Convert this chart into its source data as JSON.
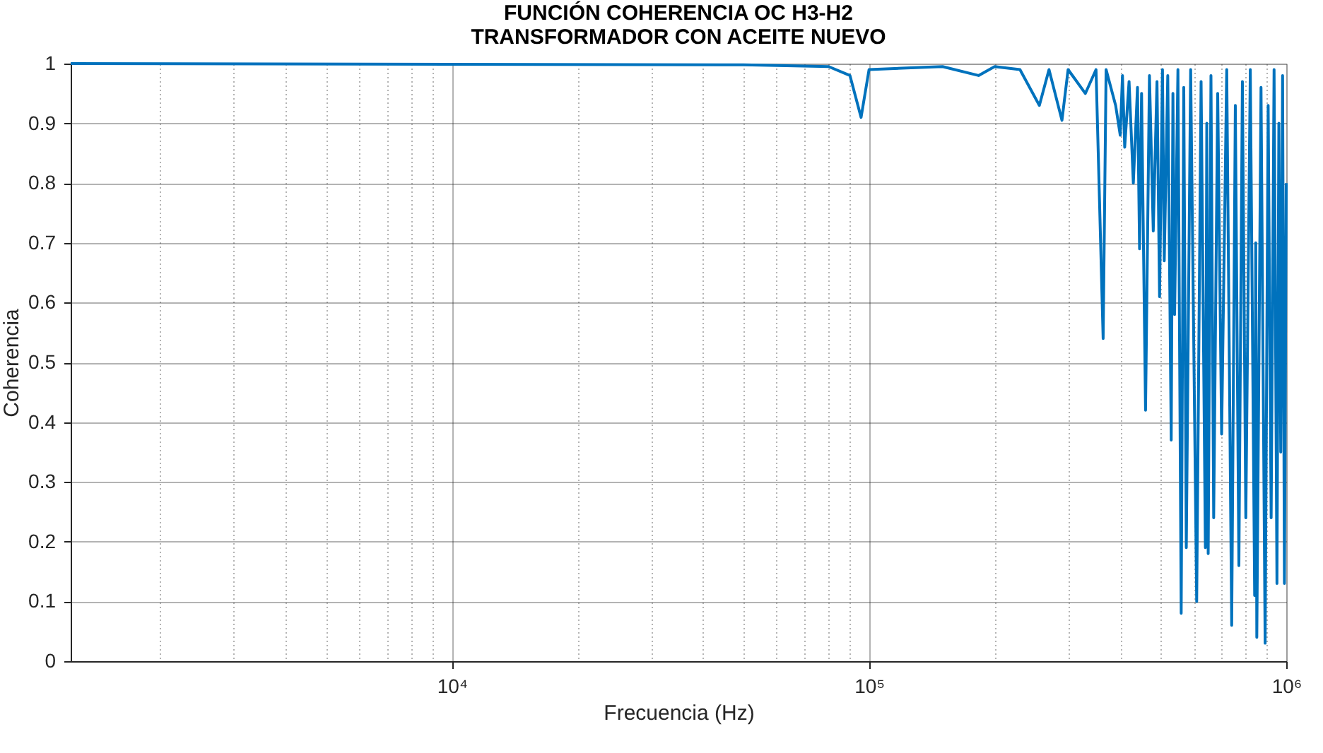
{
  "chart_data": {
    "type": "line",
    "title": [
      "FUNCIÓN COHERENCIA OC H3-H2",
      "TRANSFORMADOR CON ACEITE NUEVO"
    ],
    "xlabel": "Frecuencia (Hz)",
    "ylabel": "Coherencia",
    "log": "x",
    "grid": true,
    "marker": "none",
    "line_style": "solid",
    "xlim": [
      1220,
      1000000
    ],
    "xticks": [
      {
        "value": 2000,
        "label": null
      },
      {
        "value": 3000,
        "label": null
      },
      {
        "value": 4000,
        "label": null
      },
      {
        "value": 5000,
        "label": null
      },
      {
        "value": 6000,
        "label": null
      },
      {
        "value": 7000,
        "label": null
      },
      {
        "value": 8000,
        "label": null
      },
      {
        "value": 9000,
        "label": null
      },
      {
        "value": 10000,
        "label": "10⁴"
      },
      {
        "value": 20000,
        "label": null
      },
      {
        "value": 30000,
        "label": null
      },
      {
        "value": 40000,
        "label": null
      },
      {
        "value": 50000,
        "label": null
      },
      {
        "value": 60000,
        "label": null
      },
      {
        "value": 70000,
        "label": null
      },
      {
        "value": 80000,
        "label": null
      },
      {
        "value": 90000,
        "label": null
      },
      {
        "value": 100000,
        "label": "10⁵"
      },
      {
        "value": 200000,
        "label": null
      },
      {
        "value": 300000,
        "label": null
      },
      {
        "value": 400000,
        "label": null
      },
      {
        "value": 500000,
        "label": null
      },
      {
        "value": 600000,
        "label": null
      },
      {
        "value": 700000,
        "label": null
      },
      {
        "value": 800000,
        "label": null
      },
      {
        "value": 900000,
        "label": null
      },
      {
        "value": 1000000,
        "label": "10⁶"
      }
    ],
    "ylim": [
      0,
      1
    ],
    "yticks": [
      0,
      0.1,
      0.2,
      0.3,
      0.4,
      0.5,
      0.6,
      0.7,
      0.8,
      0.9,
      1
    ],
    "series": [
      {
        "color": "#0072bd",
        "x": [
          1220,
          50000,
          80000,
          90000,
          95700,
          100000,
          150000,
          183000,
          200000,
          230000,
          256000,
          270000,
          290000,
          300000,
          330000,
          350000,
          364000,
          370000,
          390000,
          400000,
          405000,
          410000,
          420000,
          430000,
          440000,
          445000,
          450000,
          460000,
          470000,
          480000,
          490000,
          497000,
          505000,
          510000,
          520000,
          530000,
          535000,
          540000,
          550000,
          560000,
          568000,
          576000,
          590000,
          610000,
          625000,
          640000,
          645000,
          650000,
          660000,
          670000,
          685000,
          700000,
          720000,
          740000,
          755000,
          770000,
          785000,
          800000,
          820000,
          840000,
          845000,
          850000,
          870000,
          890000,
          905000,
          920000,
          935000,
          950000,
          960000,
          970000,
          980000,
          990000,
          1000000
        ],
        "values": [
          1.0,
          0.998,
          0.995,
          0.98,
          0.91,
          0.99,
          0.995,
          0.98,
          0.995,
          0.99,
          0.93,
          0.99,
          0.905,
          0.99,
          0.95,
          0.99,
          0.54,
          0.99,
          0.93,
          0.88,
          0.98,
          0.86,
          0.97,
          0.8,
          0.96,
          0.69,
          0.95,
          0.42,
          0.98,
          0.72,
          0.97,
          0.61,
          0.99,
          0.67,
          0.98,
          0.37,
          0.95,
          0.58,
          0.99,
          0.08,
          0.96,
          0.19,
          0.99,
          0.1,
          0.97,
          0.19,
          0.9,
          0.18,
          0.98,
          0.24,
          0.95,
          0.38,
          0.99,
          0.06,
          0.93,
          0.16,
          0.97,
          0.24,
          0.99,
          0.11,
          0.7,
          0.04,
          0.96,
          0.03,
          0.93,
          0.24,
          0.99,
          0.13,
          0.9,
          0.35,
          0.98,
          0.13,
          0.8
        ]
      }
    ]
  }
}
